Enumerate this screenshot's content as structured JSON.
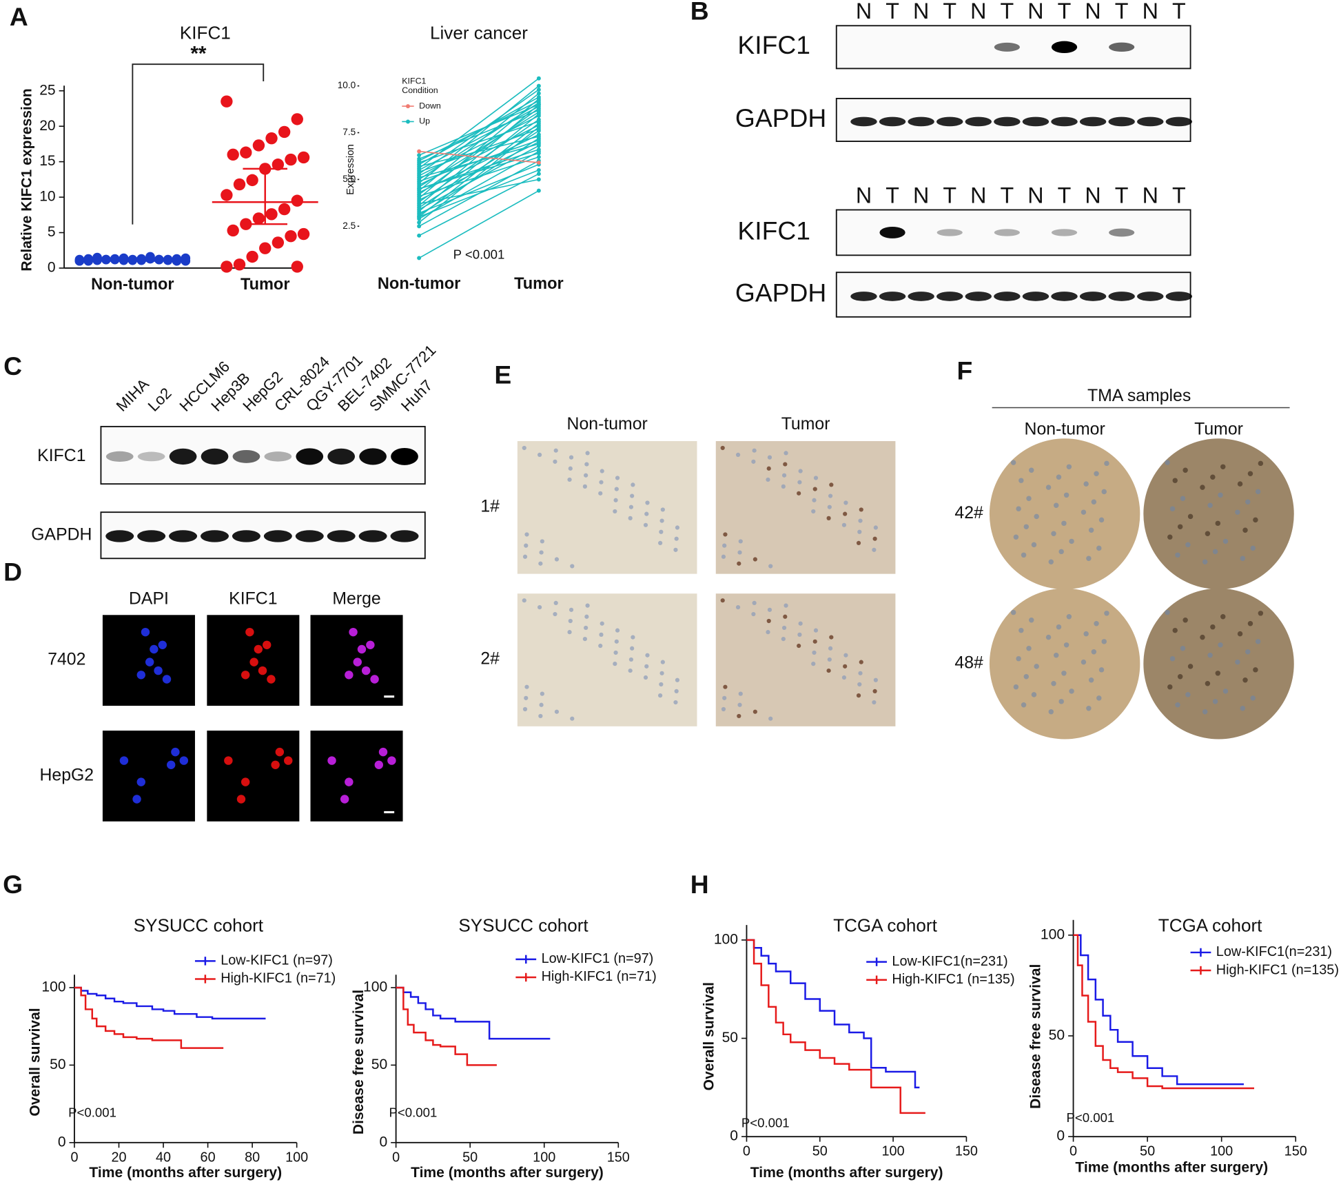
{
  "panel_labels": [
    "A",
    "B",
    "C",
    "D",
    "E",
    "F",
    "G",
    "H"
  ],
  "blot_b": [
    {
      "lanes": [
        "N",
        "T",
        "N",
        "T",
        "N",
        "T",
        "N",
        "T",
        "N",
        "T",
        "N",
        "T"
      ],
      "proteins": [
        "KIFC1",
        "GAPDH"
      ]
    },
    {
      "lanes": [
        "N",
        "T",
        "N",
        "T",
        "N",
        "T",
        "N",
        "T",
        "N",
        "T",
        "N",
        "T"
      ],
      "proteins": [
        "KIFC1",
        "GAPDH"
      ]
    }
  ],
  "blot_c": {
    "lanes": [
      "MIHA",
      "Lo2",
      "HCCLM6",
      "Hep3B",
      "HepG2",
      "CRL-8024",
      "QGY-7701",
      "BEL-7402",
      "SMMC-7721",
      "Huh7"
    ],
    "proteins": [
      "KIFC1",
      "GAPDH"
    ]
  },
  "panel_d": {
    "columns": [
      "DAPI",
      "KIFC1",
      "Merge"
    ],
    "rows": [
      "7402",
      "HepG2"
    ]
  },
  "panel_e": {
    "columns": [
      "Non-tumor",
      "Tumor"
    ],
    "rows": [
      "1#",
      "2#"
    ]
  },
  "panel_f": {
    "title": "TMA samples",
    "columns": [
      "Non-tumor",
      "Tumor"
    ],
    "rows": [
      "42#",
      "48#"
    ]
  },
  "chart_data": [
    {
      "type": "dot",
      "title": "KIFC1",
      "annotation": "**",
      "y_label": "Relative KIFC1 expression",
      "categories": [
        "Non-tumor",
        "Tumor"
      ],
      "colors": [
        "#1a3cc8",
        "#e8141b"
      ],
      "values": [
        [
          1.0,
          1.1,
          1.2,
          1.3,
          1.1,
          1.2,
          1.0,
          1.4,
          1.2,
          1.3,
          1.1,
          1.2,
          1.5,
          1.0,
          1.3,
          1.2,
          1.1,
          1.4,
          1.2,
          1.3,
          1.0,
          1.1,
          1.6,
          1.2,
          1.3,
          1.1,
          1.2,
          1.0
        ],
        [
          23.5,
          21,
          19.2,
          18.3,
          17.3,
          16.3,
          16.0,
          15.6,
          15.3,
          14.6,
          14.0,
          12.4,
          11.8,
          10.3,
          9.5,
          8.3,
          7.6,
          7.0,
          6.2,
          5.3,
          4.8,
          4.5,
          3.6,
          2.8,
          1.6,
          0.5,
          0.2,
          0.2
        ]
      ],
      "center": [
        1.2,
        9.3
      ],
      "spread": [
        [
          1.0,
          1.4
        ],
        [
          6.2,
          14.0
        ]
      ],
      "ylim": [
        0,
        25
      ],
      "yticks": [
        0,
        5,
        10,
        15,
        20,
        25
      ]
    },
    {
      "type": "paired",
      "title": "Liver cancer",
      "y_label": "Expression",
      "legend_title": [
        "KIFC1",
        "Condition"
      ],
      "annotation": "P <0.001",
      "categories": [
        "Non-tumor",
        "Tumor"
      ],
      "series": [
        {
          "name": "Down",
          "color": "#f07c72",
          "values": [
            [
              6.5,
              5.9
            ]
          ]
        },
        {
          "name": "Up",
          "color": "#1bbcbf",
          "values": [
            [
              0.8,
              4.4
            ],
            [
              2.0,
              5.3
            ],
            [
              2.5,
              6.0
            ],
            [
              2.7,
              7.8
            ],
            [
              2.9,
              6.5
            ],
            [
              3.0,
              8.0
            ],
            [
              3.1,
              7.2
            ],
            [
              3.2,
              5.8
            ],
            [
              3.3,
              8.5
            ],
            [
              3.4,
              6.8
            ],
            [
              3.5,
              7.6
            ],
            [
              3.6,
              9.0
            ],
            [
              3.7,
              5.0
            ],
            [
              3.8,
              8.2
            ],
            [
              3.9,
              7.0
            ],
            [
              4.0,
              9.3
            ],
            [
              4.1,
              6.2
            ],
            [
              4.2,
              8.8
            ],
            [
              4.3,
              7.4
            ],
            [
              4.4,
              9.6
            ],
            [
              4.5,
              6.6
            ],
            [
              4.6,
              8.6
            ],
            [
              4.7,
              7.9
            ],
            [
              4.8,
              10.0
            ],
            [
              4.9,
              7.1
            ],
            [
              5.0,
              9.1
            ],
            [
              5.1,
              6.9
            ],
            [
              5.2,
              8.4
            ],
            [
              5.3,
              9.8
            ],
            [
              5.4,
              7.7
            ],
            [
              5.5,
              8.9
            ],
            [
              5.6,
              10.4
            ],
            [
              5.7,
              7.3
            ],
            [
              5.8,
              9.4
            ],
            [
              5.9,
              8.1
            ],
            [
              6.0,
              9.2
            ],
            [
              6.1,
              8.7
            ],
            [
              6.3,
              9.0
            ],
            [
              3.0,
              5.5
            ],
            [
              4.5,
              6.4
            ]
          ]
        }
      ],
      "ylim": [
        0.4,
        10.7
      ],
      "yticks": [
        2.5,
        {
          "value": 5,
          "label": "5.0"
        },
        7.5,
        {
          "value": 10,
          "label": "10.0"
        }
      ]
    },
    {
      "type": "survival",
      "title": "SYSUCC cohort",
      "y_label": "Overall survival",
      "x_label": "Time (months after surgery)",
      "annotation": "P<0.001",
      "series": [
        {
          "name": "Low-KIFC1 (n=97)",
          "color": "#1a1ae6",
          "x": [
            0,
            3,
            6,
            10,
            14,
            18,
            22,
            28,
            35,
            40,
            45,
            55,
            62,
            86
          ],
          "values": [
            100,
            98,
            96,
            95,
            93,
            91,
            90,
            88,
            86,
            85,
            83,
            81,
            80,
            80
          ]
        },
        {
          "name": "High-KIFC1 (n=71)",
          "color": "#e61a1a",
          "x": [
            0,
            3,
            5,
            8,
            10,
            14,
            18,
            22,
            28,
            35,
            48,
            55,
            67
          ],
          "values": [
            100,
            95,
            86,
            80,
            75,
            72,
            70,
            68,
            67,
            66,
            61,
            61,
            61
          ]
        }
      ],
      "xlim": [
        0,
        100
      ],
      "xticks": [
        0,
        20,
        40,
        60,
        80,
        100
      ],
      "ylim": [
        0,
        105
      ],
      "yticks": [
        0,
        50,
        100
      ]
    },
    {
      "type": "survival",
      "title": "SYSUCC cohort",
      "y_label": "Disease free survival",
      "x_label": "Time (months after surgery)",
      "annotation": "P<0.001",
      "series": [
        {
          "name": "Low-KIFC1 (n=97)",
          "color": "#1a1ae6",
          "x": [
            0,
            5,
            10,
            15,
            20,
            25,
            30,
            40,
            50,
            63,
            104
          ],
          "values": [
            100,
            97,
            94,
            90,
            86,
            82,
            80,
            78,
            78,
            67,
            67
          ]
        },
        {
          "name": "High-KIFC1 (n=71)",
          "color": "#e61a1a",
          "x": [
            0,
            5,
            8,
            12,
            20,
            25,
            30,
            40,
            48,
            68
          ],
          "values": [
            100,
            86,
            76,
            71,
            66,
            63,
            62,
            57,
            50,
            50
          ]
        }
      ],
      "xlim": [
        0,
        150
      ],
      "xticks": [
        0,
        50,
        100,
        150
      ],
      "ylim": [
        0,
        105
      ],
      "yticks": [
        0,
        50,
        100
      ]
    },
    {
      "type": "survival",
      "title": "TCGA cohort",
      "y_label": "Overall survival",
      "x_label": "Time (months after surgery)",
      "annotation": "P<0.001",
      "series": [
        {
          "name": "Low-KIFC1(n=231)",
          "color": "#1a1ae6",
          "x": [
            0,
            5,
            10,
            15,
            20,
            30,
            40,
            50,
            60,
            70,
            80,
            85,
            95,
            115,
            118
          ],
          "values": [
            100,
            96,
            92,
            88,
            84,
            78,
            70,
            64,
            57,
            53,
            50,
            35,
            33,
            25,
            25
          ]
        },
        {
          "name": "High-KIFC1 (n=135)",
          "color": "#e61a1a",
          "x": [
            0,
            5,
            10,
            15,
            20,
            25,
            30,
            40,
            50,
            60,
            70,
            85,
            105,
            122
          ],
          "values": [
            100,
            88,
            77,
            66,
            58,
            52,
            48,
            44,
            40,
            37,
            34,
            25,
            12,
            12
          ]
        }
      ],
      "xlim": [
        0,
        150
      ],
      "xticks": [
        0,
        50,
        100,
        150
      ],
      "ylim": [
        0,
        105
      ],
      "yticks": [
        0,
        50,
        100
      ]
    },
    {
      "type": "survival",
      "title": "TCGA cohort",
      "y_label": "Disease free survival",
      "x_label": "Time (months after surgery)",
      "annotation": "P<0.001",
      "series": [
        {
          "name": "Low-KIFC1(n=231)",
          "color": "#1a1ae6",
          "x": [
            0,
            5,
            10,
            15,
            20,
            25,
            30,
            40,
            50,
            60,
            70,
            115
          ],
          "values": [
            100,
            90,
            78,
            68,
            60,
            53,
            47,
            40,
            34,
            30,
            26,
            26
          ]
        },
        {
          "name": "High-KIFC1 (n=135)",
          "color": "#e61a1a",
          "x": [
            0,
            3,
            6,
            10,
            15,
            20,
            25,
            30,
            40,
            50,
            60,
            122
          ],
          "values": [
            100,
            85,
            70,
            57,
            45,
            38,
            34,
            32,
            29,
            25,
            24,
            24
          ]
        }
      ],
      "xlim": [
        0,
        150
      ],
      "xticks": [
        0,
        50,
        100,
        150
      ],
      "ylim": [
        0,
        105
      ],
      "yticks": [
        0,
        50,
        100
      ]
    }
  ]
}
